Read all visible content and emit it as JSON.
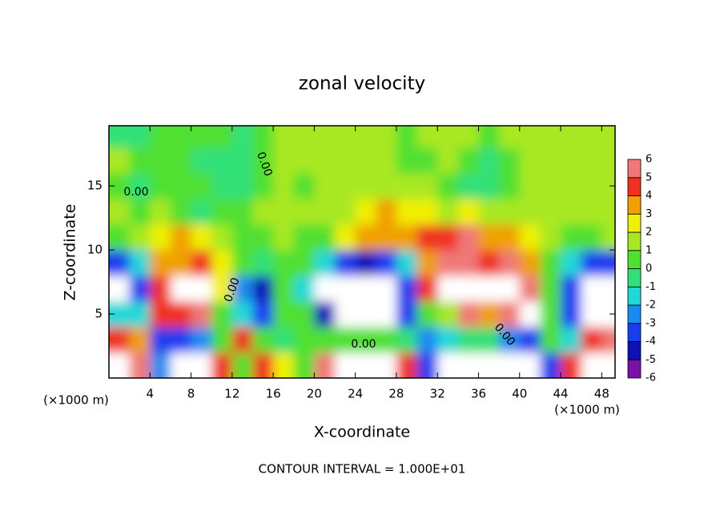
{
  "chart_data": {
    "type": "heatmap",
    "title": "zonal velocity",
    "x_label": "X-coordinate",
    "y_label": "Z-coordinate",
    "x_unit": "(×1000 m)",
    "footnote": "CONTOUR INTERVAL = 1.000E+01",
    "contour_labels": [
      "0.00",
      "0.00",
      "0.00",
      "0.00",
      "0.00"
    ],
    "x": [
      1,
      3,
      5,
      7,
      9,
      11,
      13,
      15,
      17,
      19,
      21,
      23,
      25,
      27,
      29,
      31,
      33,
      35,
      37,
      39,
      41,
      43,
      45,
      47,
      49
    ],
    "y": [
      1,
      3,
      5,
      7,
      9,
      11,
      13,
      15,
      17,
      19
    ],
    "values": [
      [
        8,
        5,
        -3,
        8,
        8,
        4,
        0,
        4,
        2,
        0,
        5,
        8,
        8,
        8,
        4,
        -4,
        8,
        8,
        8,
        8,
        8,
        -4,
        4,
        8,
        8
      ],
      [
        4,
        3,
        -4,
        -4,
        -3,
        0,
        4,
        0,
        -1,
        0,
        0,
        0,
        0,
        0,
        -1,
        -3,
        -2,
        -1,
        -1,
        -3,
        -4,
        0,
        -2,
        4,
        5
      ],
      [
        -2,
        -2,
        4,
        4,
        5,
        0,
        -2,
        -4,
        0,
        0,
        -5,
        -8,
        -8,
        -8,
        -4,
        0,
        1,
        5,
        3,
        5,
        8,
        0,
        -4,
        -8,
        -8
      ],
      [
        -8,
        -4,
        4,
        8,
        8,
        2,
        -3,
        -5,
        0,
        -2,
        -8,
        -8,
        -8,
        -8,
        -4,
        4,
        8,
        8,
        8,
        8,
        5,
        0,
        -4,
        -8,
        -8
      ],
      [
        -4,
        -2,
        3,
        3,
        4,
        2,
        0,
        -1,
        0,
        0,
        -2,
        -4,
        -5,
        -4,
        -2,
        3,
        5,
        5,
        4,
        5,
        3,
        0,
        -2,
        -4,
        -4
      ],
      [
        0,
        1,
        2,
        3,
        2,
        1,
        0,
        0,
        1,
        0,
        0,
        2,
        3,
        3,
        3,
        4,
        4,
        5,
        3,
        3,
        2,
        1,
        0,
        0,
        1
      ],
      [
        1,
        0,
        1,
        0,
        -1,
        0,
        0,
        1,
        1,
        1,
        1,
        1,
        2,
        3,
        2,
        2,
        1,
        2,
        1,
        1,
        1,
        1,
        1,
        1,
        1
      ],
      [
        0,
        -1,
        0,
        0,
        0,
        -1,
        -1,
        0,
        1,
        0,
        1,
        1,
        1,
        1,
        1,
        1,
        0,
        -1,
        -1,
        0,
        1,
        1,
        1,
        1,
        1
      ],
      [
        1,
        0,
        0,
        0,
        -1,
        -1,
        -1,
        0,
        1,
        1,
        1,
        1,
        1,
        1,
        0,
        0,
        1,
        0,
        -1,
        0,
        1,
        1,
        1,
        1,
        1
      ],
      [
        -1,
        -1,
        0,
        0,
        0,
        0,
        -1,
        0,
        1,
        1,
        1,
        1,
        1,
        1,
        0,
        1,
        1,
        1,
        0,
        1,
        1,
        1,
        1,
        1,
        1
      ]
    ],
    "xlim": [
      0,
      49.3
    ],
    "ylim": [
      0,
      19.7
    ],
    "xticks": [
      4,
      8,
      12,
      16,
      20,
      24,
      28,
      32,
      36,
      40,
      44,
      48
    ],
    "yticks": [
      5,
      10,
      15
    ],
    "colorbar": {
      "levels": [
        -6,
        -5,
        -4,
        -3,
        -2,
        -1,
        0,
        1,
        2,
        3,
        4,
        5,
        6
      ],
      "colors": [
        "#7a10a8",
        "#1010b8",
        "#1a3cf0",
        "#1a8cf0",
        "#20d8d8",
        "#30e078",
        "#50e030",
        "#a8e820",
        "#f0f000",
        "#f0a000",
        "#f03020",
        "#f07878"
      ],
      "out_of_range_color": "#ffffff"
    }
  }
}
